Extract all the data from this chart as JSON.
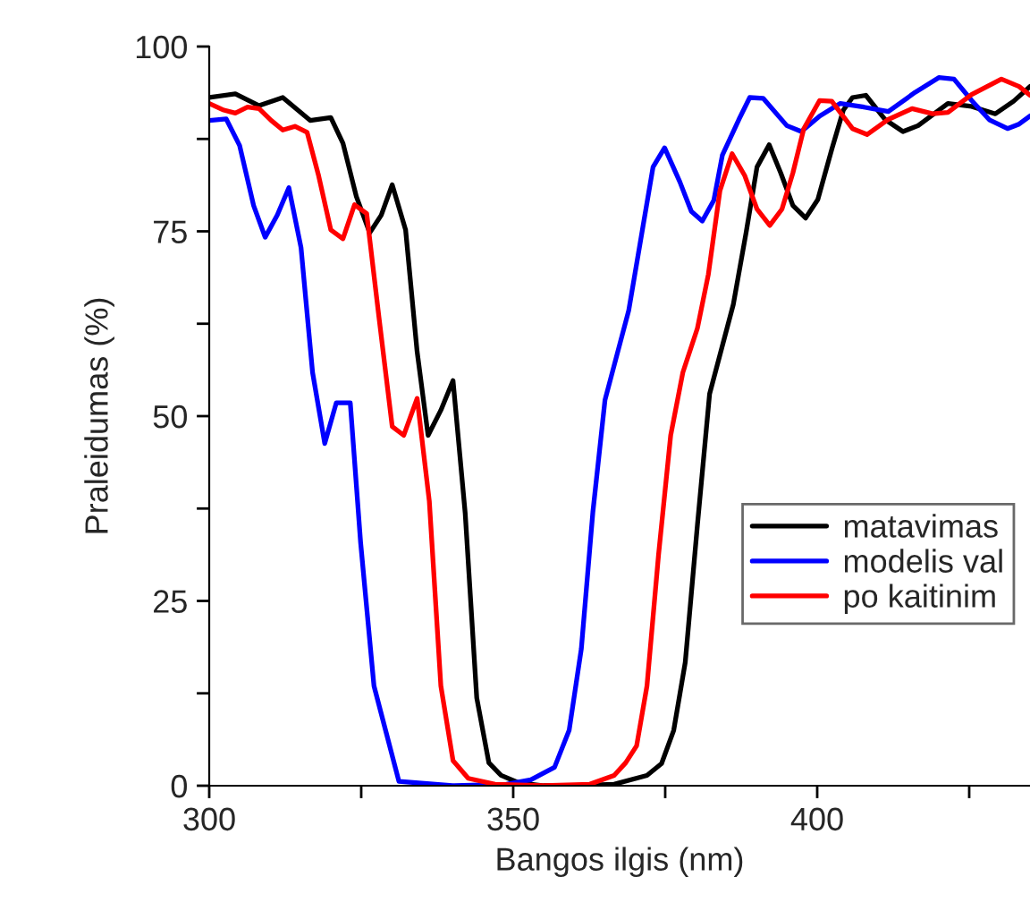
{
  "chart_data": {
    "type": "line",
    "xlabel": "Bangos ilgis (nm)",
    "ylabel": "Praleidumas (%)",
    "xlim": [
      300,
      435
    ],
    "xticks": [
      300,
      {
        "value": 325,
        "label": null
      },
      350,
      {
        "value": 375,
        "label": null
      },
      400,
      {
        "value": 425,
        "label": null
      }
    ],
    "ylim": [
      0,
      100
    ],
    "yticks": [
      0,
      {
        "value": 12.5,
        "label": null
      },
      25,
      {
        "value": 37.5,
        "label": null
      },
      50,
      {
        "value": 62.5,
        "label": null
      },
      75,
      {
        "value": 87.5,
        "label": null
      },
      100
    ],
    "grid": false,
    "legend": "right",
    "marker": "none",
    "line_style": "solid",
    "series": [
      {
        "name": "matavimas",
        "color": "#000000",
        "x": [
          300,
          304.3,
          308.2,
          312.1,
          316.6,
          320,
          322,
          324.2,
          326.4,
          328.3,
          330.1,
          332.3,
          334.2,
          336,
          338.1,
          340.1,
          342.1,
          344,
          346,
          348,
          350.9,
          355,
          360,
          366.6,
          372,
          374.4,
          376.4,
          378.3,
          380.3,
          382.3,
          386.2,
          388.3,
          390.1,
          392.1,
          394,
          396,
          398.1,
          400.1,
          402.4,
          404.3,
          405.8,
          408,
          411.2,
          414.1,
          416.6,
          421.5,
          425.4,
          429.3,
          432.3,
          435
        ],
        "values": [
          93.1,
          93.6,
          92,
          93.1,
          90,
          90.4,
          86.9,
          79.7,
          74.8,
          77.2,
          81.3,
          75.2,
          58.7,
          47.4,
          50.8,
          54.8,
          36.9,
          11.9,
          3.1,
          1.4,
          0.4,
          0,
          0,
          0.2,
          1.4,
          3,
          7.5,
          16.7,
          35.3,
          53,
          65.1,
          74.8,
          83.7,
          86.7,
          82.9,
          78.5,
          76.8,
          79.3,
          86.1,
          91.4,
          93.1,
          93.4,
          90.1,
          88.5,
          89.3,
          92.3,
          91.9,
          90.9,
          92.6,
          94.6
        ]
      },
      {
        "name": "modelis val",
        "color": "#0000ff",
        "x": [
          300,
          302.8,
          305,
          307.3,
          309.2,
          311.2,
          313.1,
          315.1,
          317,
          319,
          320.9,
          323.2,
          324.9,
          327.1,
          329.1,
          331.2,
          340,
          348.9,
          352.9,
          356.8,
          359.2,
          361.2,
          363.1,
          365.1,
          369,
          373,
          374.9,
          377.4,
          379.3,
          381.1,
          383,
          384.4,
          387.1,
          388.9,
          391.1,
          395,
          397.4,
          400.4,
          403.8,
          407.7,
          411.7,
          416.1,
          420,
          422.5,
          425.4,
          428.3,
          431.3,
          433.2,
          435
        ],
        "values": [
          90,
          90.2,
          86.6,
          78.5,
          74.2,
          77.2,
          80.9,
          72.8,
          55.9,
          46.3,
          51.8,
          51.8,
          32.9,
          13.5,
          7.2,
          0.6,
          0,
          0.2,
          0.8,
          2.5,
          7.5,
          18.5,
          37,
          52.2,
          64.3,
          83.7,
          86.3,
          81.7,
          77.7,
          76.4,
          79.2,
          85.3,
          90.1,
          93.1,
          93,
          89.3,
          88.5,
          90.6,
          92.3,
          91.8,
          91.2,
          93.8,
          95.8,
          95.6,
          92.7,
          90.1,
          88.9,
          89.5,
          90.6
        ]
      },
      {
        "name": "po kaitinim",
        "color": "#ff0000",
        "x": [
          300,
          302.4,
          304.3,
          306.3,
          308.2,
          310.2,
          312.1,
          314.1,
          316.1,
          318,
          320,
          322,
          323.9,
          325.9,
          327.9,
          330.1,
          332,
          334.2,
          336.2,
          338.1,
          340.1,
          342.6,
          347,
          355,
          362.6,
          366.6,
          368.5,
          370.3,
          372,
          373.9,
          375.9,
          377.9,
          380.3,
          382.1,
          384,
          386,
          388.1,
          390.1,
          392.2,
          394.2,
          396,
          397.8,
          400.4,
          402.4,
          405.8,
          408.2,
          411.6,
          415.6,
          419,
          421.5,
          425.4,
          430.3,
          433.2,
          435
        ],
        "values": [
          92.3,
          91.4,
          91,
          91.8,
          91.6,
          90,
          88.7,
          89.2,
          88.4,
          82.5,
          75.2,
          74,
          78.6,
          77.4,
          63.5,
          48.6,
          47.4,
          52.4,
          38.5,
          13.5,
          3.4,
          1,
          0.2,
          0,
          0.2,
          1.4,
          3.1,
          5.4,
          13.5,
          31.2,
          47.4,
          55.9,
          61.9,
          69.2,
          80.5,
          85.5,
          82.5,
          78,
          75.8,
          78,
          82.9,
          88.9,
          92.7,
          92.6,
          88.9,
          88.1,
          90.1,
          91.6,
          90.9,
          91.1,
          93.5,
          95.6,
          94.6,
          93.4
        ]
      }
    ]
  }
}
